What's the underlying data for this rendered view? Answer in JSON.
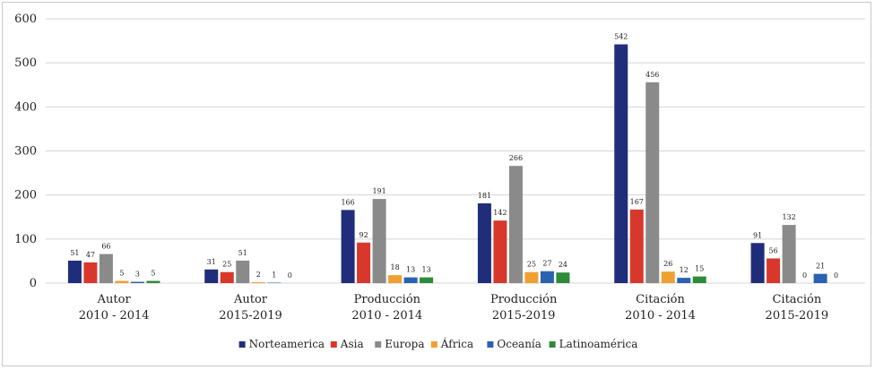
{
  "chart_data": {
    "type": "bar",
    "title": "",
    "xlabel": "",
    "ylabel": "",
    "ylim": [
      0,
      600
    ],
    "yticks": [
      "0",
      "100",
      "200",
      "300",
      "400",
      "500",
      "600"
    ],
    "grid": true,
    "legend_position": "bottom",
    "categories": [
      [
        "Autor",
        "2010 - 2014"
      ],
      [
        "Autor",
        "2015-2019"
      ],
      [
        "Producción",
        "2010 - 2014"
      ],
      [
        "Producción",
        "2015-2019"
      ],
      [
        "Citación",
        "2010 - 2014"
      ],
      [
        "Citación",
        "2015-2019"
      ]
    ],
    "series": [
      {
        "name": "Norteamerica",
        "color": "#1f2d7a",
        "values": [
          51,
          31,
          166,
          181,
          542,
          91
        ]
      },
      {
        "name": "Asia",
        "color": "#d7382b",
        "values": [
          47,
          25,
          92,
          142,
          167,
          56
        ]
      },
      {
        "name": "Europa",
        "color": "#8a8a8a",
        "values": [
          66,
          51,
          191,
          266,
          456,
          132
        ]
      },
      {
        "name": "África",
        "color": "#f0a030",
        "values": [
          5,
          2,
          18,
          25,
          26,
          0
        ]
      },
      {
        "name": "Oceanía",
        "color": "#2a62b0",
        "values": [
          3,
          1,
          13,
          27,
          12,
          21
        ]
      },
      {
        "name": "Latinoamérica",
        "color": "#2e8b3a",
        "values": [
          5,
          0,
          13,
          24,
          15,
          0
        ]
      }
    ]
  }
}
